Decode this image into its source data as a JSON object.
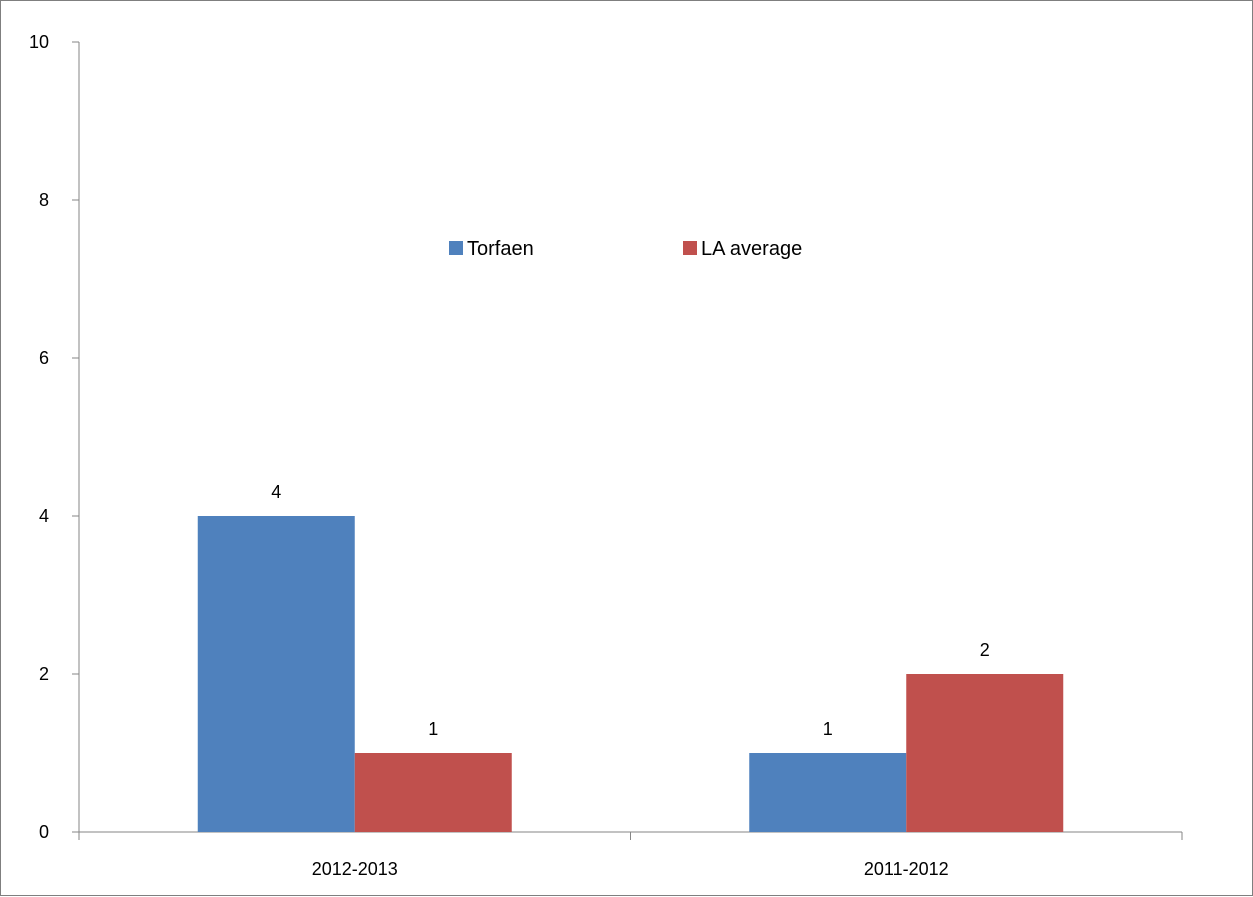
{
  "chart_data": {
    "type": "bar",
    "title": "",
    "xlabel": "",
    "ylabel": "",
    "categories": [
      "2012-2013",
      "2011-2012"
    ],
    "series": [
      {
        "name": "Torfaen",
        "values": [
          4,
          1
        ],
        "color": "#4F81BD"
      },
      {
        "name": "LA average",
        "values": [
          1,
          2
        ],
        "color": "#C0504D"
      }
    ],
    "ylim": [
      0,
      10
    ],
    "yticks": [
      "0",
      "2",
      "4",
      "6",
      "8",
      "10"
    ],
    "data_labels": true,
    "grid": false,
    "legend_position": "top-center"
  }
}
